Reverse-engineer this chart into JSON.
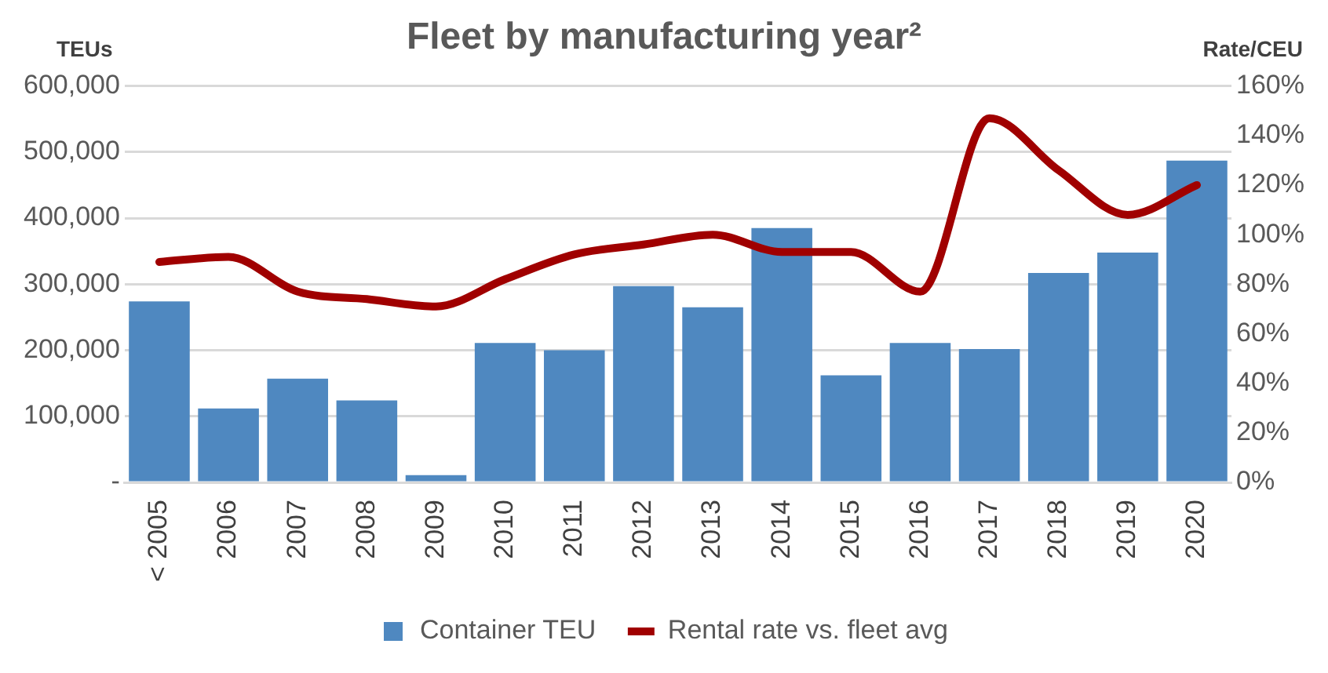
{
  "chart_data": {
    "type": "bar",
    "title": "Fleet by manufacturing year²",
    "ylabel": "TEUs",
    "y2label": "Rate/CEU",
    "categories": [
      "< 2005",
      "2006",
      "2007",
      "2008",
      "2009",
      "2010",
      "2011",
      "2012",
      "2013",
      "2014",
      "2015",
      "2016",
      "2017",
      "2018",
      "2019",
      "2020"
    ],
    "series": [
      {
        "name": "Container TEU",
        "color": "#4f88c0",
        "values": [
          274000,
          112000,
          157000,
          124000,
          11000,
          211000,
          200000,
          297000,
          265000,
          385000,
          162000,
          211000,
          202000,
          317000,
          348000,
          487000
        ]
      },
      {
        "name": "Rental rate vs. fleet avg",
        "type": "line",
        "axis": "y2",
        "color": "#a00000",
        "values": [
          89,
          91,
          77,
          74,
          71,
          82,
          92,
          96,
          100,
          93,
          93,
          77,
          147,
          126,
          108,
          120
        ]
      }
    ],
    "ylim": [
      0,
      600000
    ],
    "yticks": [
      {
        "value": 0,
        "label": "-"
      },
      {
        "value": 100000,
        "label": "100,000"
      },
      {
        "value": 200000,
        "label": "200,000"
      },
      {
        "value": 300000,
        "label": "300,000"
      },
      {
        "value": 400000,
        "label": "400,000"
      },
      {
        "value": 500000,
        "label": "500,000"
      },
      {
        "value": 600000,
        "label": "600,000"
      }
    ],
    "y2lim": [
      0,
      160
    ],
    "y2ticks": [
      {
        "value": 0,
        "label": "0%"
      },
      {
        "value": 20,
        "label": "20%"
      },
      {
        "value": 40,
        "label": "40%"
      },
      {
        "value": 60,
        "label": "60%"
      },
      {
        "value": 80,
        "label": "80%"
      },
      {
        "value": 100,
        "label": "100%"
      },
      {
        "value": 120,
        "label": "120%"
      },
      {
        "value": 140,
        "label": "140%"
      },
      {
        "value": 160,
        "label": "160%"
      }
    ],
    "grid": "y",
    "legend": "bottom"
  }
}
